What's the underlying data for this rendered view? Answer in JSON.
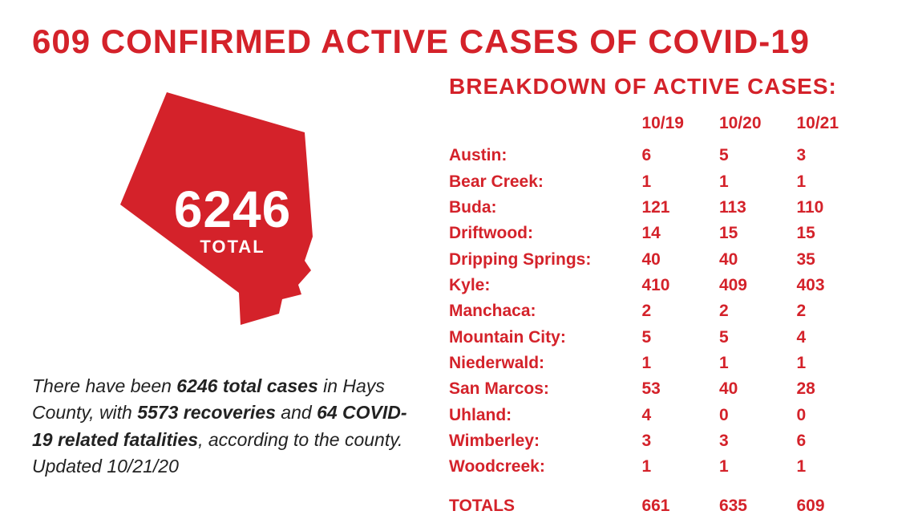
{
  "colors": {
    "red": "#d4222a",
    "text": "#222222",
    "white": "#ffffff",
    "bg": "#ffffff"
  },
  "title": "609 CONFIRMED ACTIVE CASES OF COVID-19",
  "shape": {
    "number": "6246",
    "word": "TOTAL"
  },
  "summary": {
    "pre": "There have been ",
    "b1": "6246 total cases",
    "mid1": " in Hays County, with ",
    "b2": "5573 recoveries",
    "mid2": " and ",
    "b3": "64 COVID-19 related fatalities",
    "post": ", according to the county. Updated 10/21/20"
  },
  "breakdown_title": "BREAKDOWN OF ACTIVE CASES:",
  "date_headers": [
    "10/19",
    "10/20",
    "10/21"
  ],
  "rows": [
    {
      "name": "Austin:",
      "v": [
        "6",
        "5",
        "3"
      ]
    },
    {
      "name": "Bear Creek:",
      "v": [
        "1",
        "1",
        "1"
      ]
    },
    {
      "name": "Buda:",
      "v": [
        "121",
        "113",
        "110"
      ]
    },
    {
      "name": "Driftwood:",
      "v": [
        "14",
        "15",
        "15"
      ]
    },
    {
      "name": "Dripping Springs:",
      "v": [
        "40",
        "40",
        "35"
      ]
    },
    {
      "name": "Kyle:",
      "v": [
        "410",
        "409",
        "403"
      ]
    },
    {
      "name": "Manchaca:",
      "v": [
        "2",
        "2",
        "2"
      ]
    },
    {
      "name": "Mountain City:",
      "v": [
        "5",
        "5",
        "4"
      ]
    },
    {
      "name": "Niederwald:",
      "v": [
        "1",
        "1",
        "1"
      ]
    },
    {
      "name": "San Marcos:",
      "v": [
        "53",
        "40",
        "28"
      ]
    },
    {
      "name": "Uhland:",
      "v": [
        "4",
        "0",
        "0"
      ]
    },
    {
      "name": "Wimberley:",
      "v": [
        "3",
        "3",
        "6"
      ]
    },
    {
      "name": "Woodcreek:",
      "v": [
        "1",
        "1",
        "1"
      ]
    }
  ],
  "totals": {
    "label": "TOTALS",
    "v": [
      "661",
      "635",
      "609"
    ]
  }
}
